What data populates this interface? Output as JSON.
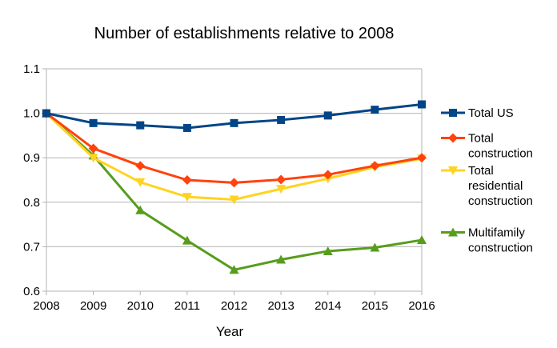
{
  "chart_data": {
    "type": "line",
    "title": "Number of establishments relative to 2008",
    "xlabel": "Year",
    "ylabel": "",
    "x": [
      2008,
      2009,
      2010,
      2011,
      2012,
      2013,
      2014,
      2015,
      2016
    ],
    "ylim": [
      0.6,
      1.1
    ],
    "yticks": [
      "0.6",
      "0.7",
      "0.8",
      "0.9",
      "1.0",
      "1.1"
    ],
    "grid": true,
    "legend": "right",
    "series": [
      {
        "name": "Total US",
        "color": "#004586",
        "marker": "square",
        "values": [
          1.0,
          0.978,
          0.973,
          0.967,
          0.978,
          0.985,
          0.995,
          1.008,
          1.02
        ]
      },
      {
        "name": "Total construction",
        "color": "#ff420e",
        "marker": "diamond",
        "values": [
          1.0,
          0.921,
          0.882,
          0.85,
          0.844,
          0.851,
          0.862,
          0.882,
          0.9
        ]
      },
      {
        "name": "Total residential construction",
        "color": "#ffd320",
        "marker": "triangle-down",
        "values": [
          1.0,
          0.9,
          0.845,
          0.812,
          0.806,
          0.83,
          0.853,
          0.879,
          0.898
        ]
      },
      {
        "name": "Multifamily construction",
        "color": "#579d1c",
        "marker": "triangle-up",
        "values": [
          1.0,
          0.905,
          0.782,
          0.714,
          0.648,
          0.671,
          0.69,
          0.698,
          0.715
        ]
      }
    ]
  },
  "legend_lines": [
    [
      "Total US"
    ],
    [
      "Total",
      "construction"
    ],
    [
      "Total",
      "residential",
      "construction"
    ],
    [
      "Multifamily",
      "construction"
    ]
  ]
}
